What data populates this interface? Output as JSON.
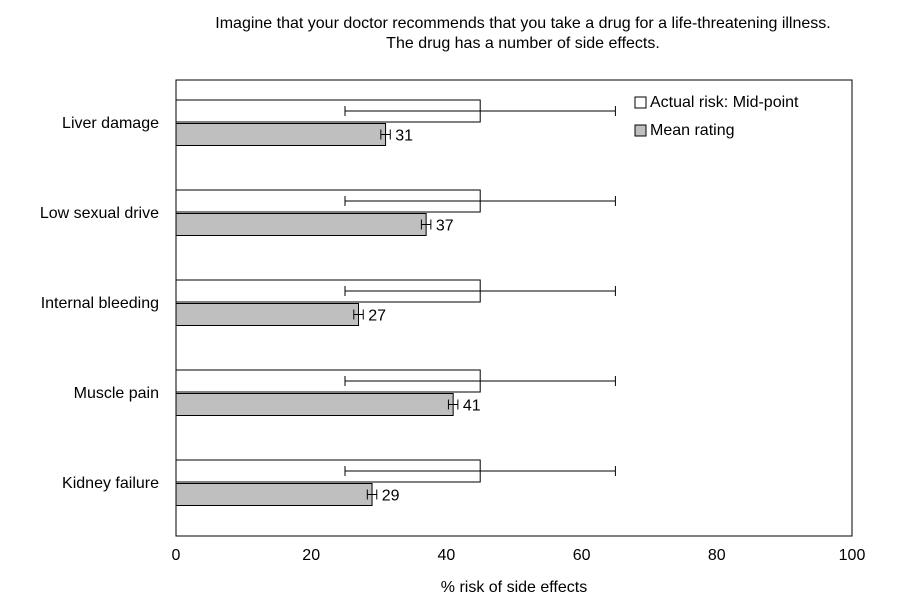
{
  "chart_data": {
    "type": "bar",
    "orientation": "horizontal",
    "title": "Imagine that your doctor recommends that you take a drug for a life-threatening illness.",
    "subtitle": "The drug has a number of side effects.",
    "xlabel": "% risk of side effects",
    "ylabel": "",
    "xlim": [
      0,
      100
    ],
    "x_ticks": [
      0,
      20,
      40,
      60,
      80,
      100
    ],
    "grid": false,
    "legend_position": "top-right",
    "categories": [
      "Liver damage",
      "Low sexual drive",
      "Internal bleeding",
      "Muscle pain",
      "Kidney failure"
    ],
    "series": [
      {
        "name": "Actual risk: Mid-point",
        "values": [
          45,
          45,
          45,
          45,
          45
        ],
        "error_low": [
          25,
          25,
          25,
          25,
          25
        ],
        "error_high": [
          65,
          65,
          65,
          65,
          65
        ],
        "fill": "#ffffff",
        "data_labels": false
      },
      {
        "name": "Mean rating",
        "values": [
          31,
          37,
          27,
          41,
          29
        ],
        "error_low": [
          30.3,
          36.3,
          26.3,
          40.3,
          28.3
        ],
        "error_high": [
          31.7,
          37.7,
          27.7,
          41.7,
          29.7
        ],
        "fill": "#bfbfbf",
        "data_labels": true
      }
    ]
  }
}
